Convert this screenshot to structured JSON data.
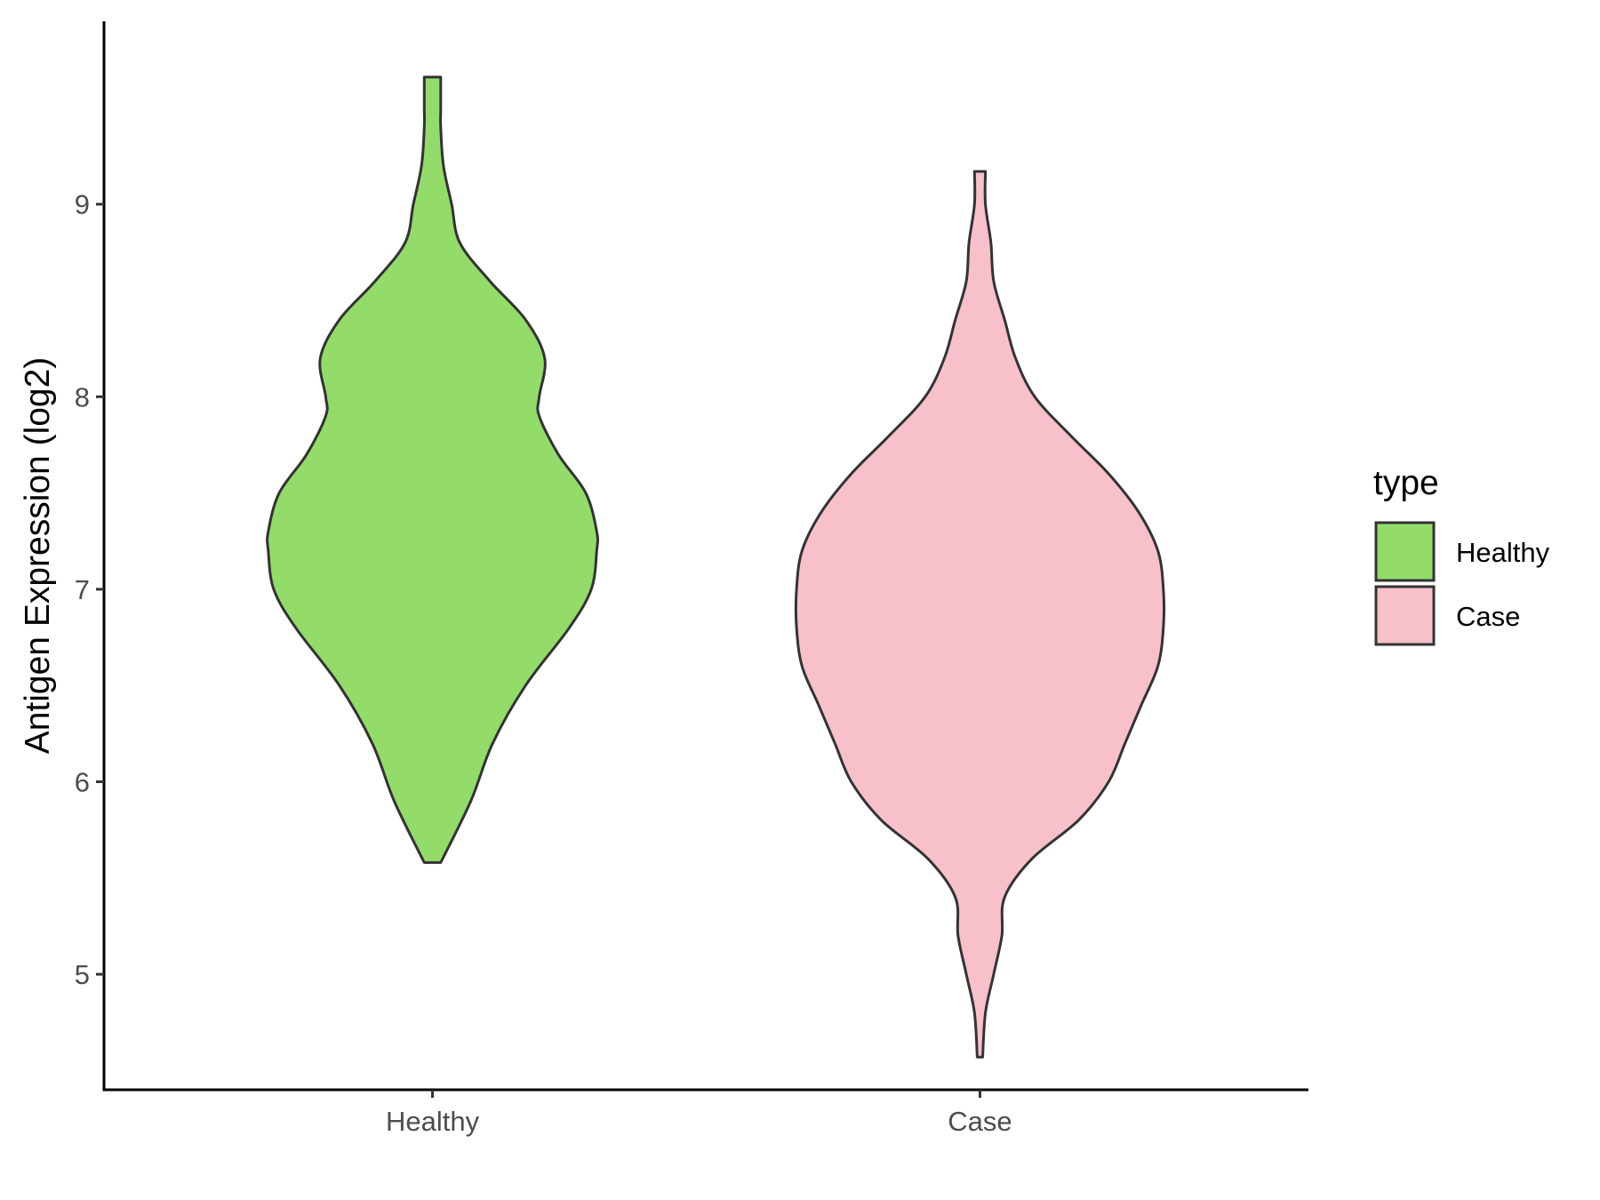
{
  "chart_data": {
    "type": "violin",
    "ylabel": "Antigen Expression (log2)",
    "xlabel": "",
    "categories": [
      "Healthy",
      "Case"
    ],
    "ylim": [
      4.4,
      9.95
    ],
    "yticks": [
      5,
      6,
      7,
      8,
      9
    ],
    "legend": {
      "title": "type",
      "position": "right",
      "items": [
        {
          "label": "Healthy",
          "color": "#93dc6a"
        },
        {
          "label": "Case",
          "color": "#f7c0cb"
        }
      ]
    },
    "grid": false,
    "series": [
      {
        "name": "Healthy",
        "color": "#93dc6a",
        "y_min": 5.58,
        "y_max": 9.66,
        "profile": [
          [
            5.58,
            0.03
          ],
          [
            5.9,
            0.14
          ],
          [
            6.2,
            0.22
          ],
          [
            6.5,
            0.34
          ],
          [
            6.8,
            0.5
          ],
          [
            7.0,
            0.58
          ],
          [
            7.2,
            0.6
          ],
          [
            7.3,
            0.6
          ],
          [
            7.5,
            0.56
          ],
          [
            7.7,
            0.46
          ],
          [
            7.9,
            0.39
          ],
          [
            8.0,
            0.39
          ],
          [
            8.2,
            0.41
          ],
          [
            8.4,
            0.34
          ],
          [
            8.6,
            0.21
          ],
          [
            8.8,
            0.1
          ],
          [
            9.0,
            0.07
          ],
          [
            9.2,
            0.04
          ],
          [
            9.4,
            0.03
          ],
          [
            9.5,
            0.03
          ],
          [
            9.66,
            0.03
          ]
        ]
      },
      {
        "name": "Case",
        "color": "#f7c0cb",
        "y_min": 4.57,
        "y_max": 9.17,
        "profile": [
          [
            4.57,
            0.01
          ],
          [
            4.8,
            0.02
          ],
          [
            5.0,
            0.05
          ],
          [
            5.2,
            0.08
          ],
          [
            5.4,
            0.09
          ],
          [
            5.6,
            0.19
          ],
          [
            5.8,
            0.36
          ],
          [
            6.0,
            0.47
          ],
          [
            6.2,
            0.53
          ],
          [
            6.4,
            0.59
          ],
          [
            6.6,
            0.65
          ],
          [
            6.8,
            0.67
          ],
          [
            7.0,
            0.67
          ],
          [
            7.2,
            0.65
          ],
          [
            7.4,
            0.58
          ],
          [
            7.6,
            0.47
          ],
          [
            7.8,
            0.33
          ],
          [
            8.0,
            0.2
          ],
          [
            8.2,
            0.13
          ],
          [
            8.4,
            0.09
          ],
          [
            8.6,
            0.05
          ],
          [
            8.8,
            0.04
          ],
          [
            9.0,
            0.02
          ],
          [
            9.17,
            0.02
          ]
        ]
      }
    ]
  }
}
